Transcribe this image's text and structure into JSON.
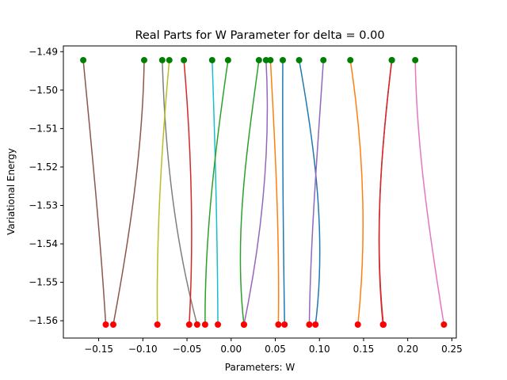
{
  "chart_data": {
    "type": "line",
    "title": "Real Parts for W Parameter for delta = 0.00",
    "xlabel": "Parameters: W",
    "ylabel": "Variational Energy",
    "xlim": [
      -0.19,
      0.255
    ],
    "ylim": [
      -1.5645,
      -1.4885
    ],
    "xticks": [
      -0.15,
      -0.1,
      -0.05,
      0.0,
      0.05,
      0.1,
      0.15,
      0.2,
      0.25
    ],
    "xtick_labels": [
      "−0.15",
      "−0.10",
      "−0.05",
      "0.00",
      "0.05",
      "0.10",
      "0.15",
      "0.20",
      "0.25"
    ],
    "yticks": [
      -1.49,
      -1.5,
      -1.51,
      -1.52,
      -1.53,
      -1.54,
      -1.55,
      -1.56
    ],
    "ytick_labels": [
      "−1.49",
      "−1.50",
      "−1.51",
      "−1.52",
      "−1.53",
      "−1.54",
      "−1.55",
      "−1.56"
    ],
    "start_energy": -1.4922,
    "end_energy": -1.561,
    "start_marker_color": "#008000",
    "end_marker_color": "#ff0000",
    "grid": false,
    "series": [
      {
        "color": "#8c564b",
        "x": [
          -0.1675,
          -0.158,
          -0.148,
          -0.142
        ]
      },
      {
        "color": "#8c564b",
        "x": [
          -0.0985,
          -0.1,
          -0.115,
          -0.1335
        ]
      },
      {
        "color": "#7f7f7f",
        "x": [
          -0.078,
          -0.075,
          -0.065,
          -0.0385
        ]
      },
      {
        "color": "#bcbd22",
        "x": [
          -0.07,
          -0.079,
          -0.085,
          -0.0835
        ]
      },
      {
        "color": "#d62728",
        "x": [
          -0.0535,
          -0.045,
          -0.042,
          -0.0475
        ]
      },
      {
        "color": "#17becf",
        "x": [
          -0.0215,
          -0.018,
          -0.0155,
          -0.015
        ]
      },
      {
        "color": "#2ca02c",
        "x": [
          -0.0035,
          -0.018,
          -0.03,
          -0.0295
        ]
      },
      {
        "color": "#2ca02c",
        "x": [
          0.0315,
          0.018,
          0.003,
          0.0145
        ]
      },
      {
        "color": "#9467bd",
        "x": [
          0.0395,
          0.045,
          0.035,
          0.0145
        ]
      },
      {
        "color": "#ff7f0e",
        "x": [
          0.0445,
          0.05,
          0.055,
          0.0535
        ]
      },
      {
        "color": "#1f77b4",
        "x": [
          0.0585,
          0.058,
          0.059,
          0.0605
        ]
      },
      {
        "color": "#1f77b4",
        "x": [
          0.077,
          0.095,
          0.108,
          0.0955
        ]
      },
      {
        "color": "#9467bd",
        "x": [
          0.1045,
          0.098,
          0.09,
          0.0885
        ]
      },
      {
        "color": "#ff7f0e",
        "x": [
          0.135,
          0.15,
          0.154,
          0.1435
        ]
      },
      {
        "color": "#d62728",
        "x": [
          0.182,
          0.17,
          0.162,
          0.172
        ]
      },
      {
        "color": "#d62728",
        "x": [
          0.182,
          0.17,
          0.162,
          0.1725
        ]
      },
      {
        "color": "#e377c2",
        "x": [
          0.2085,
          0.21,
          0.225,
          0.241
        ]
      }
    ]
  }
}
